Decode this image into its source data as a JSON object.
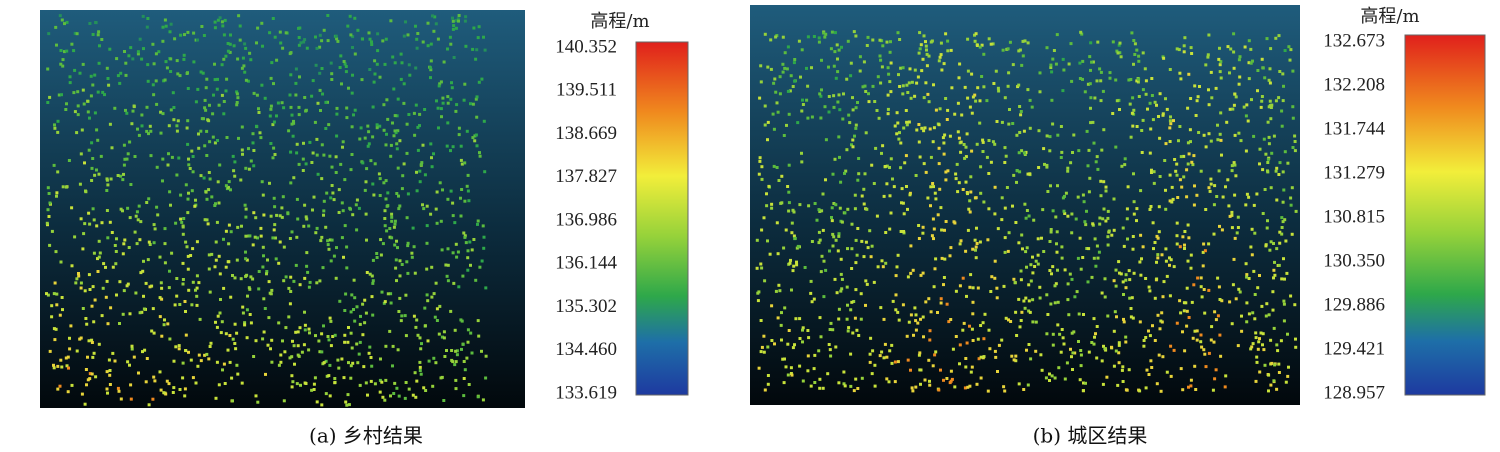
{
  "panels": [
    {
      "colorbar_title": "高程/m",
      "ticks": [
        "140.352",
        "139.511",
        "138.669",
        "137.827",
        "136.986",
        "136.144",
        "135.302",
        "134.460",
        "133.619"
      ],
      "caption": "(a) 乡村结果"
    },
    {
      "colorbar_title": "高程/m",
      "ticks": [
        "132.673",
        "132.208",
        "131.744",
        "131.279",
        "130.815",
        "130.350",
        "129.886",
        "129.421",
        "128.957"
      ],
      "caption": "(b) 城区结果"
    }
  ]
}
